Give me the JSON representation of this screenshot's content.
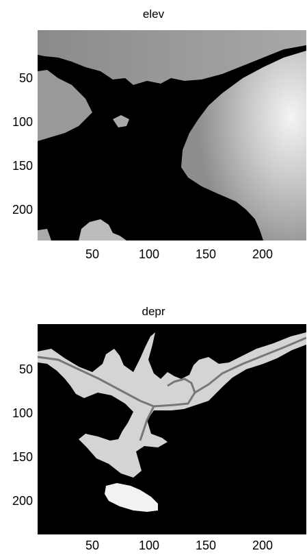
{
  "chart_data": [
    {
      "type": "heatmap",
      "title": "elev",
      "xlabel": "",
      "ylabel": "",
      "colormap": "gray",
      "xlim": [
        0.5,
        235.5
      ],
      "ylim": [
        240.5,
        0.5
      ],
      "y_reversed": true,
      "xticks": [
        50,
        100,
        150,
        200
      ],
      "yticks": [
        50,
        100,
        150,
        200
      ],
      "grid": false
    },
    {
      "type": "heatmap",
      "title": "depr",
      "xlabel": "",
      "ylabel": "",
      "colormap": "gray",
      "xlim": [
        0.5,
        235.5
      ],
      "ylim": [
        240.5,
        0.5
      ],
      "y_reversed": true,
      "xticks": [
        50,
        100,
        150,
        200
      ],
      "yticks": [
        50,
        100,
        150,
        200
      ],
      "grid": false
    }
  ],
  "colors": {
    "background": "#000000",
    "land_dark": "#8f8f8f",
    "land_light": "#f0f0f0",
    "channel": "#7a7a7a",
    "depression": "#d9d9d9"
  }
}
